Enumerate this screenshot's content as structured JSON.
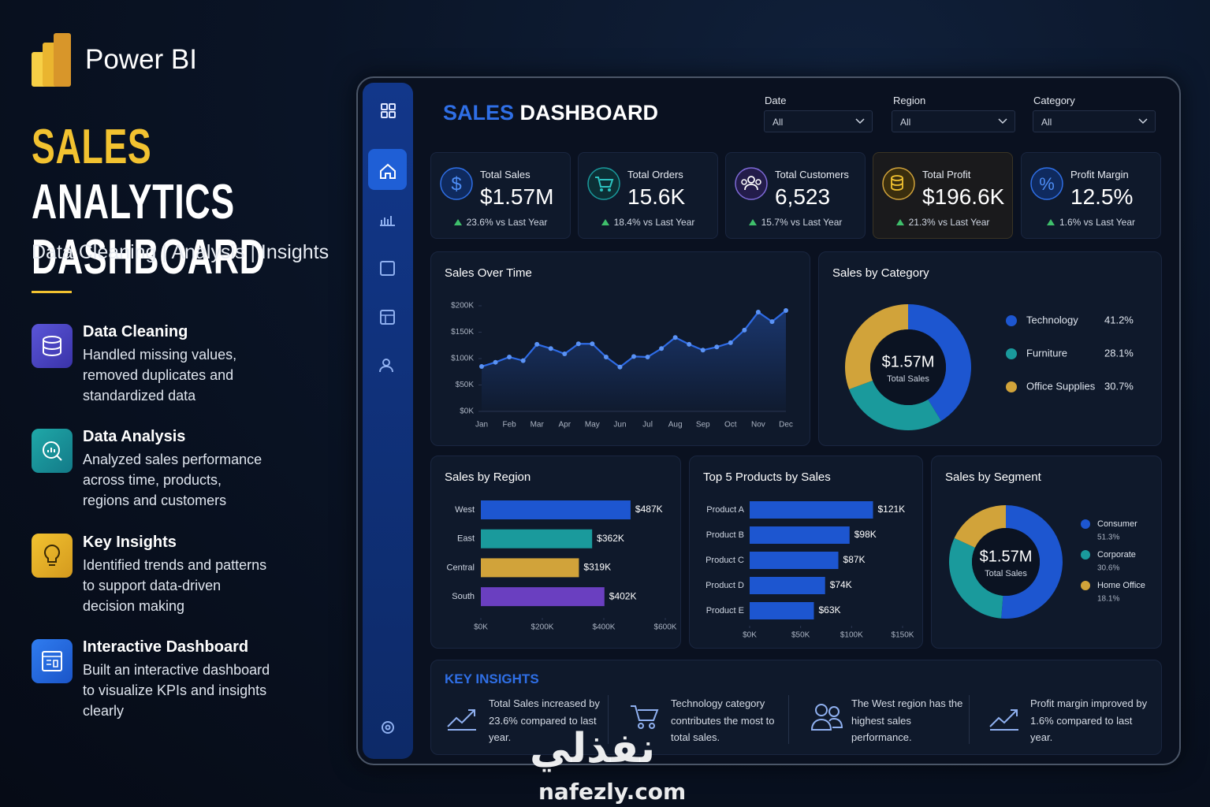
{
  "brand": "Power BI",
  "hero": {
    "title_highlight": "SALES",
    "title": "ANALYTICS DASHBOARD",
    "subtitle": "Data Cleaning | Analysis | Insights"
  },
  "features": [
    {
      "title": "Data Cleaning",
      "text": "Handled missing values, removed duplicates and standardized data"
    },
    {
      "title": "Data Analysis",
      "text": "Analyzed sales performance across time, products, regions and customers"
    },
    {
      "title": "Key Insights",
      "text": "Identified trends and patterns to support data-driven decision making"
    },
    {
      "title": "Interactive Dashboard",
      "text": "Built an interactive dashboard to visualize KPIs and insights clearly"
    }
  ],
  "dashboard": {
    "title_highlight": "SALES",
    "title": "DASHBOARD",
    "filters": [
      {
        "label": "Date",
        "value": "All"
      },
      {
        "label": "Region",
        "value": "All"
      },
      {
        "label": "Category",
        "value": "All"
      }
    ],
    "kpis": [
      {
        "label": "Total Sales",
        "value": "$1.57M",
        "change": "23.6% vs Last Year"
      },
      {
        "label": "Total Orders",
        "value": "15.6K",
        "change": "18.4% vs Last Year"
      },
      {
        "label": "Total Customers",
        "value": "6,523",
        "change": "15.7% vs Last Year"
      },
      {
        "label": "Total Profit",
        "value": "$196.6K",
        "change": "21.3% vs Last Year"
      },
      {
        "label": "Profit Margin",
        "value": "12.5%",
        "change": "1.6% vs Last Year"
      }
    ],
    "insights": {
      "title": "KEY INSIGHTS",
      "items": [
        "Total Sales increased by 23.6% compared to last year.",
        "Technology category contributes the most to total sales.",
        "The West region has the highest sales performance.",
        "Profit margin improved by 1.6% compared to last year."
      ]
    }
  },
  "chart_data": [
    {
      "type": "line",
      "title": "Sales Over Time",
      "categories": [
        "Jan",
        null,
        "Feb",
        null,
        "Mar",
        null,
        "Apr",
        null,
        "May",
        null,
        "Jun",
        null,
        "Jul",
        null,
        "Aug",
        null,
        "Sep",
        null,
        "Oct",
        null,
        "Nov",
        null,
        "Dec"
      ],
      "values": [
        85000,
        93000,
        103000,
        96000,
        127000,
        119000,
        109000,
        128000,
        128000,
        103000,
        84000,
        104000,
        103000,
        119000,
        140000,
        127000,
        116000,
        122000,
        130000,
        154000,
        188000,
        170000,
        191000
      ],
      "color": "#2e6be6",
      "ylim": [
        0,
        200000
      ],
      "yticks": [
        {
          "value": 0,
          "label": "$0K"
        },
        {
          "value": 50000,
          "label": "$50K"
        },
        {
          "value": 100000,
          "label": "$100K"
        },
        {
          "value": 150000,
          "label": "$150K"
        },
        {
          "value": 200000,
          "label": "$200K"
        }
      ]
    },
    {
      "type": "donut",
      "title": "Sales by Category",
      "center_value": "$1.57M",
      "center_label": "Total Sales",
      "categories": [
        "Technology",
        "Furniture",
        "Office Supplies"
      ],
      "values": [
        41.2,
        28.1,
        30.7
      ],
      "value_labels": [
        "41.2%",
        "28.1%",
        "30.7%"
      ],
      "colors": [
        "#1d56d0",
        "#1a9a9c",
        "#d1a33a"
      ]
    },
    {
      "type": "bar",
      "horizontal": true,
      "title": "Sales by Region",
      "categories": [
        "West",
        "East",
        "Central",
        "South"
      ],
      "values": [
        487000,
        362000,
        319000,
        402000
      ],
      "value_labels": [
        "$487K",
        "$362K",
        "$319K",
        "$402K"
      ],
      "colors": [
        "#1d56d0",
        "#1a9a9c",
        "#d1a33a",
        "#6a3fc0"
      ],
      "xlim": [
        0,
        600000
      ],
      "xticks": [
        {
          "value": 0,
          "label": "$0K"
        },
        {
          "value": 200000,
          "label": "$200K"
        },
        {
          "value": 400000,
          "label": "$400K"
        },
        {
          "value": 600000,
          "label": "$600K"
        }
      ]
    },
    {
      "type": "bar",
      "horizontal": true,
      "title": "Top 5 Products by Sales",
      "categories": [
        "Product A",
        "Product B",
        "Product C",
        "Product D",
        "Product E"
      ],
      "values": [
        121000,
        98000,
        87000,
        74000,
        63000
      ],
      "value_labels": [
        "$121K",
        "$98K",
        "$87K",
        "$74K",
        "$63K"
      ],
      "colors": [
        "#1d56d0",
        "#1d56d0",
        "#1d56d0",
        "#1d56d0",
        "#1d56d0"
      ],
      "xlim": [
        0,
        150000
      ],
      "xticks": [
        {
          "value": 0,
          "label": "$0K"
        },
        {
          "value": 50000,
          "label": "$50K"
        },
        {
          "value": 100000,
          "label": "$100K"
        },
        {
          "value": 150000,
          "label": "$150K"
        }
      ]
    },
    {
      "type": "donut",
      "title": "Sales by Segment",
      "center_value": "$1.57M",
      "center_label": "Total Sales",
      "categories": [
        "Consumer",
        "Corporate",
        "Home Office"
      ],
      "values": [
        51.3,
        30.6,
        18.1
      ],
      "value_labels": [
        "51.3%",
        "30.6%",
        "18.1%"
      ],
      "colors": [
        "#1d56d0",
        "#1a9a9c",
        "#d1a33a"
      ]
    }
  ],
  "watermark": {
    "logo": "نفذلي",
    "site": "nafezly.com"
  }
}
